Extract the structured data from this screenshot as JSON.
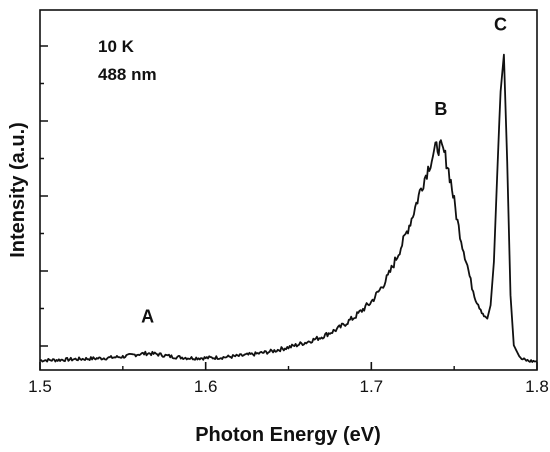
{
  "chart_data": {
    "type": "line",
    "title": "",
    "xlabel": "Photon Energy (eV)",
    "ylabel": "Intensity (a.u.)",
    "xlim": [
      1.5,
      1.8
    ],
    "ylim": [
      0,
      1.0
    ],
    "x_ticks": [
      "1.5",
      "1.6",
      "1.7",
      "1.8"
    ],
    "y_ticks_labeled": false,
    "annotations": [
      "10 K",
      "488 nm"
    ],
    "peak_labels": [
      {
        "label": "A",
        "x": 1.565,
        "y": 0.1
      },
      {
        "label": "B",
        "x": 1.742,
        "y": 0.71
      },
      {
        "label": "C",
        "x": 1.778,
        "y": 0.95
      }
    ],
    "series": [
      {
        "x": [
          1.5,
          1.51,
          1.52,
          1.53,
          1.54,
          1.55,
          1.555,
          1.56,
          1.565,
          1.57,
          1.575,
          1.58,
          1.59,
          1.6,
          1.61,
          1.62,
          1.63,
          1.64,
          1.65,
          1.66,
          1.67,
          1.68,
          1.69,
          1.7,
          1.705,
          1.71,
          1.715,
          1.72,
          1.725,
          1.73,
          1.735,
          1.738,
          1.74,
          1.742,
          1.744,
          1.746,
          1.748,
          1.75,
          1.752,
          1.755,
          1.758,
          1.76,
          1.763,
          1.766,
          1.768,
          1.77,
          1.772,
          1.774,
          1.776,
          1.778,
          1.78,
          1.782,
          1.784,
          1.786,
          1.79,
          1.795,
          1.8
        ],
        "y": [
          0.005,
          0.006,
          0.008,
          0.01,
          0.012,
          0.016,
          0.02,
          0.024,
          0.026,
          0.024,
          0.02,
          0.016,
          0.012,
          0.012,
          0.014,
          0.018,
          0.024,
          0.032,
          0.044,
          0.058,
          0.075,
          0.1,
          0.135,
          0.18,
          0.215,
          0.255,
          0.31,
          0.37,
          0.44,
          0.52,
          0.59,
          0.63,
          0.645,
          0.64,
          0.625,
          0.59,
          0.54,
          0.48,
          0.42,
          0.35,
          0.29,
          0.24,
          0.19,
          0.16,
          0.14,
          0.13,
          0.17,
          0.3,
          0.56,
          0.81,
          0.92,
          0.6,
          0.2,
          0.05,
          0.01,
          0.003,
          0.002
        ]
      }
    ]
  }
}
